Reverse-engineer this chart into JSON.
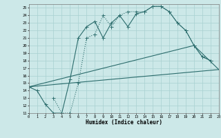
{
  "xlabel": "Humidex (Indice chaleur)",
  "line_color": "#2a6b6b",
  "bg_color": "#cce8e8",
  "grid_color": "#a8d0d0",
  "xlim": [
    0,
    23
  ],
  "ylim": [
    11,
    25.5
  ],
  "yticks": [
    11,
    12,
    13,
    14,
    15,
    16,
    17,
    18,
    19,
    20,
    21,
    22,
    23,
    24,
    25
  ],
  "xticks": [
    0,
    1,
    2,
    3,
    4,
    5,
    6,
    7,
    8,
    9,
    10,
    11,
    12,
    13,
    14,
    15,
    16,
    17,
    18,
    19,
    20,
    21,
    22,
    23
  ],
  "curve1_x": [
    0,
    1,
    2,
    3,
    4,
    5,
    6,
    7,
    8,
    9,
    10,
    11,
    12,
    13,
    14,
    15,
    16,
    17,
    18,
    19,
    20,
    21,
    22
  ],
  "curve1_y": [
    14.5,
    14.0,
    12.2,
    11.0,
    11.0,
    15.5,
    21.0,
    22.5,
    23.2,
    21.0,
    23.0,
    24.0,
    22.5,
    24.2,
    24.5,
    25.2,
    25.2,
    24.5,
    23.0,
    22.0,
    20.0,
    18.5,
    18.0
  ],
  "curve2_x": [
    3,
    4,
    5,
    6,
    7,
    8,
    9,
    10,
    11,
    12,
    13,
    14,
    15,
    16,
    17,
    18,
    19,
    20,
    21,
    22
  ],
  "curve2_y": [
    13.0,
    11.0,
    11.0,
    15.0,
    21.0,
    21.5,
    24.0,
    22.5,
    24.0,
    24.5,
    24.5,
    24.5,
    25.2,
    25.2,
    24.5,
    23.0,
    22.0,
    20.0,
    18.5,
    18.0
  ],
  "line1_x": [
    0,
    23
  ],
  "line1_y": [
    14.5,
    16.8
  ],
  "line2_x": [
    0,
    20,
    23
  ],
  "line2_y": [
    14.5,
    20.0,
    16.8
  ]
}
